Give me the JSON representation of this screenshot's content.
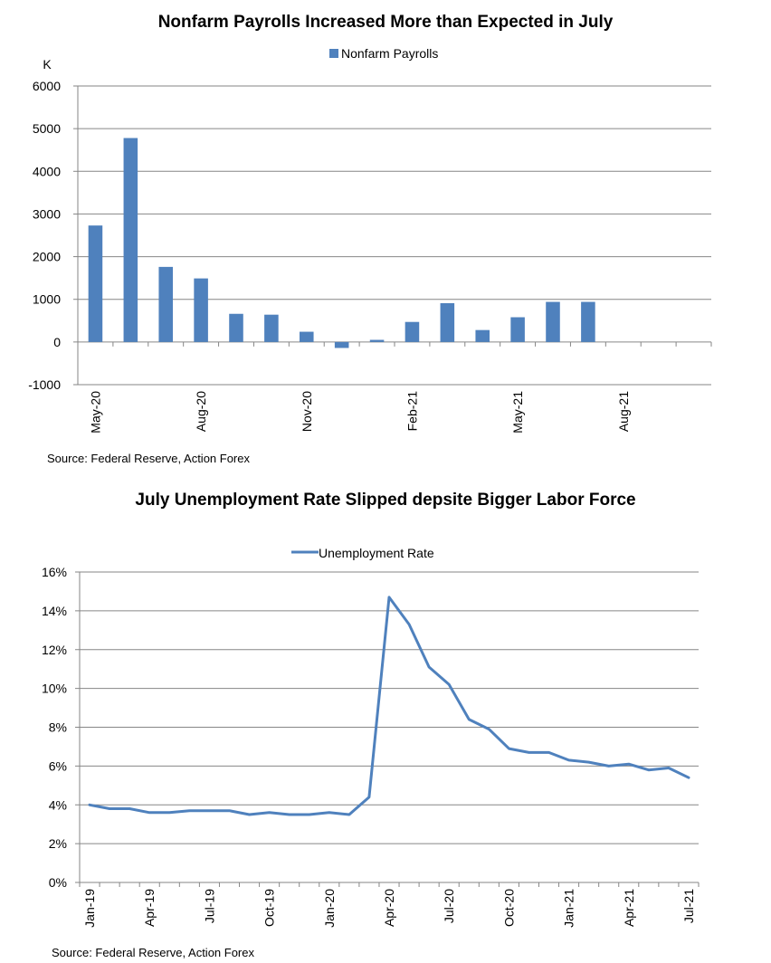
{
  "chart_data": [
    {
      "type": "bar",
      "title": "Nonfarm Payrolls Increased More than Expected in July",
      "ylabel": "K",
      "ylim": [
        -1000,
        6000
      ],
      "yticks": [
        "6000",
        "5000",
        "4000",
        "3000",
        "2000",
        "1000",
        "0",
        "-1000"
      ],
      "xtick_labels": [
        "May-20",
        "Aug-20",
        "Nov-20",
        "Feb-21",
        "May-21",
        "Aug-21"
      ],
      "categories": [
        "May-20",
        "Jun-20",
        "Jul-20",
        "Aug-20",
        "Sep-20",
        "Oct-20",
        "Nov-20",
        "Dec-20",
        "Jan-21",
        "Feb-21",
        "Mar-21",
        "Apr-21",
        "May-21",
        "Jun-21",
        "Jul-21",
        "Aug-21",
        "Sep-21",
        "Oct-21"
      ],
      "series": [
        {
          "name": "Nonfarm Payrolls",
          "color": "#4F81BD",
          "values": [
            2730,
            4780,
            1760,
            1490,
            660,
            640,
            240,
            -140,
            50,
            470,
            910,
            280,
            580,
            940,
            940,
            null,
            null,
            null
          ]
        }
      ],
      "legend": "top-center",
      "grid": true,
      "source": "Source: Federal Reserve, Action Forex"
    },
    {
      "type": "line",
      "title": "July Unemployment Rate Slipped depsite Bigger Labor Force",
      "ylim": [
        0,
        16
      ],
      "yticks": [
        "16%",
        "14%",
        "12%",
        "10%",
        "8%",
        "6%",
        "4%",
        "2%",
        "0%"
      ],
      "xtick_labels": [
        "Jan-19",
        "Apr-19",
        "Jul-19",
        "Oct-19",
        "Jan-20",
        "Apr-20",
        "Jul-20",
        "Oct-20",
        "Jan-21",
        "Apr-21",
        "Jul-21"
      ],
      "x": [
        "Jan-19",
        "Feb-19",
        "Mar-19",
        "Apr-19",
        "May-19",
        "Jun-19",
        "Jul-19",
        "Aug-19",
        "Sep-19",
        "Oct-19",
        "Nov-19",
        "Dec-19",
        "Jan-20",
        "Feb-20",
        "Mar-20",
        "Apr-20",
        "May-20",
        "Jun-20",
        "Jul-20",
        "Aug-20",
        "Sep-20",
        "Oct-20",
        "Nov-20",
        "Dec-20",
        "Jan-21",
        "Feb-21",
        "Mar-21",
        "Apr-21",
        "May-21",
        "Jun-21",
        "Jul-21"
      ],
      "series": [
        {
          "name": "Unemployment Rate",
          "color": "#4F81BD",
          "values": [
            4.0,
            3.8,
            3.8,
            3.6,
            3.6,
            3.7,
            3.7,
            3.7,
            3.5,
            3.6,
            3.5,
            3.5,
            3.6,
            3.5,
            4.4,
            14.7,
            13.3,
            11.1,
            10.2,
            8.4,
            7.9,
            6.9,
            6.7,
            6.7,
            6.3,
            6.2,
            6.0,
            6.1,
            5.8,
            5.9,
            5.4
          ]
        }
      ],
      "legend": "top-center",
      "grid": true,
      "source": "Source: Federal Reserve, Action Forex"
    }
  ]
}
